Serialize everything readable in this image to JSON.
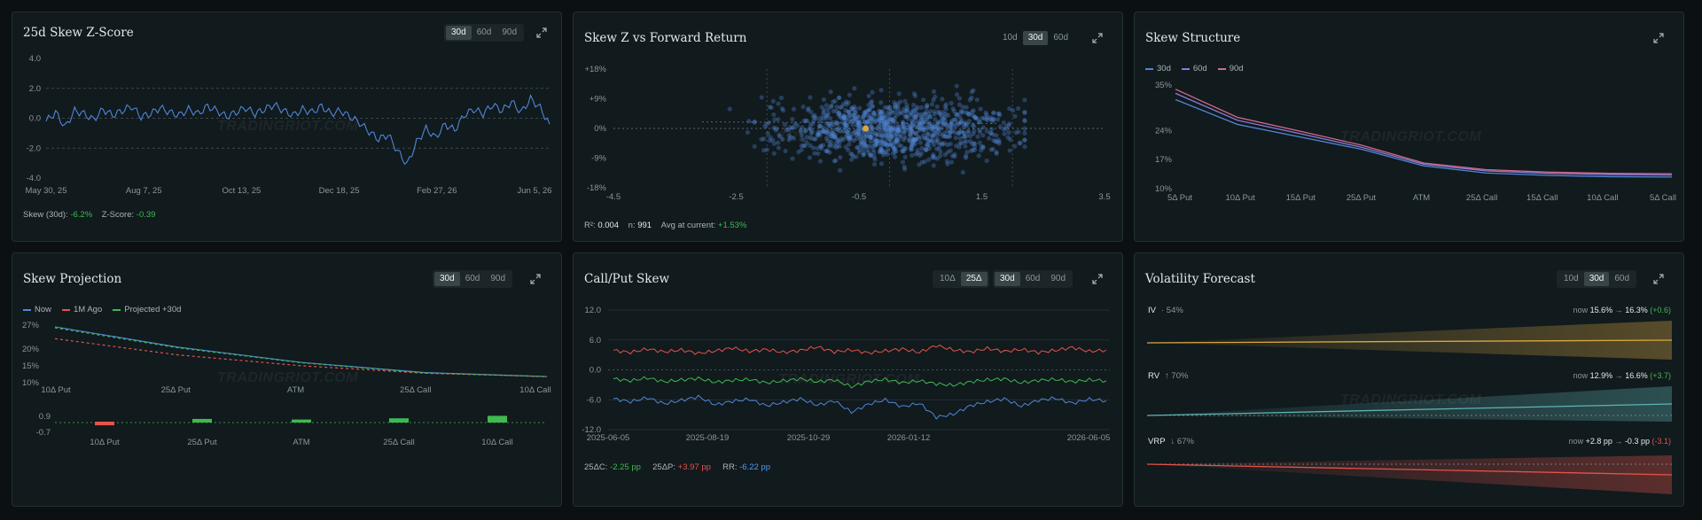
{
  "watermark": "TRADINGRIOT.COM",
  "colors": {
    "blue": "#4f86d6",
    "red": "#e5534b",
    "green": "#3fb950",
    "purple": "#8b7bd8",
    "pink": "#d46a8c",
    "gold": "#d9a741",
    "teal": "#5fb3b3"
  },
  "zscore": {
    "title": "25d Skew Z-Score",
    "tabs": [
      "30d",
      "60d",
      "90d"
    ],
    "active": "30d",
    "footer": {
      "skew_label": "Skew (30d):",
      "skew_value": "-6.2%",
      "z_label": "Z-Score:",
      "z_value": "-0.39"
    }
  },
  "scatter": {
    "title": "Skew Z vs Forward Return",
    "tabs": [
      "10d",
      "30d",
      "60d"
    ],
    "active": "30d",
    "footer": {
      "r2_label": "R²:",
      "r2_value": "0.004",
      "n_label": "n:",
      "n_value": "991",
      "avg_label": "Avg at current:",
      "avg_value": "+1.53%"
    }
  },
  "structure": {
    "title": "Skew Structure",
    "legend": [
      "30d",
      "60d",
      "90d"
    ]
  },
  "projection": {
    "title": "Skew Projection",
    "tabs": [
      "30d",
      "60d",
      "90d"
    ],
    "active": "30d",
    "legend": [
      "Now",
      "1M Ago",
      "Projected +30d"
    ]
  },
  "callput": {
    "title": "Call/Put Skew",
    "delta_tabs": [
      "10Δ",
      "25Δ"
    ],
    "delta_active": "25Δ",
    "tabs": [
      "30d",
      "60d",
      "90d"
    ],
    "active": "30d",
    "footer": {
      "c_label": "25ΔC:",
      "c_value": "-2.25 pp",
      "p_label": "25ΔP:",
      "p_value": "+3.97 pp",
      "rr_label": "RR:",
      "rr_value": "-6.22 pp"
    }
  },
  "volforecast": {
    "title": "Volatility Forecast",
    "tabs": [
      "10d",
      "30d",
      "60d"
    ],
    "active": "30d",
    "rows": {
      "iv": {
        "label": "IV",
        "sub": "· 54%",
        "now": "now",
        "from": "15.6%",
        "arrow": "→",
        "to": "16.3%",
        "delta": "(+0.6)"
      },
      "rv": {
        "label": "RV",
        "sub": "↑ 70%",
        "now": "now",
        "from": "12.9%",
        "arrow": "→",
        "to": "16.6%",
        "delta": "(+3.7)"
      },
      "vrp": {
        "label": "VRP",
        "sub": "↓ 67%",
        "now": "now",
        "from": "+2.8 pp",
        "arrow": "→",
        "to": "-0.3 pp",
        "delta": "(-3.1)"
      }
    }
  },
  "chart_data": [
    {
      "type": "line",
      "title": "25d Skew Z-Score",
      "x_ticks": [
        "May 30, 25",
        "Aug 7, 25",
        "Oct 13, 25",
        "Dec 18, 25",
        "Feb 27, 26",
        "Jun 5, 26"
      ],
      "y_ticks": [
        "4.0",
        "2.0",
        "0.0",
        "-2.0",
        "-4.0"
      ],
      "ylim": [
        -4,
        4
      ],
      "series": [
        {
          "values": [
            -0.2,
            0.4,
            -0.6,
            0.5,
            0.3,
            -0.1,
            0.6,
            0.2,
            0.5,
            0.8,
            0.1,
            0.3,
            0.7,
            0.4,
            0.2,
            0.6,
            0.3,
            0.8,
            0.5,
            0.1,
            0.4,
            0.7,
            0.3,
            0.6,
            0.9,
            0.5,
            0.2,
            0.6,
            0.4,
            0.8,
            0.3,
            0.5,
            0.1,
            -0.3,
            -0.9,
            -1.4,
            -1.1,
            -2.2,
            -3.1,
            -1.6,
            -0.7,
            -1.3,
            -0.4,
            -0.8,
            0.2,
            0.6,
            0.3,
            0.9,
            0.5,
            1.1,
            0.4,
            1.3,
            0.7,
            -0.4
          ]
        }
      ]
    },
    {
      "type": "scatter",
      "title": "Skew Z vs Forward Return",
      "x_ticks": [
        "-4.5",
        "-2.5",
        "-0.5",
        "1.5",
        "3.5"
      ],
      "y_ticks": [
        "+18%",
        "+9%",
        "0%",
        "-9%",
        "-18%"
      ],
      "xlim": [
        -4.5,
        3.5
      ],
      "ylim": [
        -18,
        18
      ],
      "n": 991,
      "current": {
        "x": -0.39,
        "y": 0
      }
    },
    {
      "type": "line",
      "title": "Skew Structure",
      "categories": [
        "5Δ Put",
        "10Δ Put",
        "15Δ Put",
        "25Δ Put",
        "ATM",
        "25Δ Call",
        "15Δ Call",
        "10Δ Call",
        "5Δ Call"
      ],
      "y_ticks": [
        "35%",
        "24%",
        "17%",
        "10%"
      ],
      "series": [
        {
          "name": "30d",
          "values": [
            31.5,
            25.5,
            22.5,
            19.5,
            15.5,
            13.8,
            13.2,
            12.9,
            12.8
          ]
        },
        {
          "name": "60d",
          "values": [
            33.0,
            26.5,
            23.3,
            20.0,
            15.9,
            14.3,
            13.7,
            13.4,
            13.3
          ]
        },
        {
          "name": "90d",
          "values": [
            34.0,
            27.2,
            23.9,
            20.5,
            16.2,
            14.6,
            14.0,
            13.7,
            13.6
          ]
        }
      ]
    },
    {
      "type": "line",
      "title": "Skew Projection",
      "categories": [
        "10Δ Put",
        "25Δ Put",
        "ATM",
        "25Δ Call",
        "10Δ Call"
      ],
      "y_ticks": [
        "27%",
        "20%",
        "15%",
        "10%"
      ],
      "series": [
        {
          "name": "Now",
          "values": [
            26.5,
            20.5,
            16.0,
            13.0,
            11.8
          ]
        },
        {
          "name": "1M Ago",
          "values": [
            23.0,
            18.2,
            15.0,
            12.8,
            11.8
          ]
        },
        {
          "name": "Projected +30d",
          "values": [
            26.2,
            20.3,
            15.9,
            12.9,
            11.8
          ]
        }
      ],
      "diff": {
        "y_ticks": [
          "0.9",
          "-0.7"
        ],
        "values": [
          -0.3,
          0.3,
          0.2,
          0.4,
          0.8
        ]
      }
    },
    {
      "type": "line",
      "title": "Call/Put Skew",
      "x_ticks": [
        "2025-06-05",
        "2025-08-19",
        "2025-10-29",
        "2026-01-12",
        "2026-06-05"
      ],
      "y_ticks": [
        "12.0",
        "6.0",
        "0.0",
        "-6.0",
        "-12.0"
      ],
      "ylim": [
        -12,
        12
      ],
      "series": [
        {
          "name": "25ΔP",
          "values": [
            3.9,
            3.5,
            4.2,
            3.6,
            4.0,
            3.3,
            3.8,
            4.4,
            3.7,
            4.1,
            3.5,
            3.9,
            4.6,
            3.6,
            4.0,
            3.4,
            3.8,
            4.2,
            3.5,
            4.9,
            4.0,
            3.6,
            4.3,
            3.7,
            4.1,
            3.5,
            3.9,
            4.5,
            3.7,
            4.0
          ]
        },
        {
          "name": "25ΔC",
          "values": [
            -1.8,
            -2.2,
            -1.6,
            -2.4,
            -2.0,
            -1.7,
            -2.5,
            -2.1,
            -1.9,
            -2.6,
            -2.2,
            -1.8,
            -2.4,
            -2.0,
            -3.4,
            -2.3,
            -1.9,
            -2.6,
            -2.2,
            -2.8,
            -3.1,
            -2.4,
            -2.0,
            -1.8,
            -2.6,
            -2.1,
            -1.9,
            -2.4,
            -2.0,
            -2.2
          ]
        },
        {
          "name": "RR",
          "values": [
            -5.8,
            -6.4,
            -5.6,
            -6.8,
            -6.1,
            -5.4,
            -7.0,
            -6.3,
            -5.9,
            -7.2,
            -6.5,
            -5.8,
            -7.1,
            -6.2,
            -8.5,
            -6.9,
            -6.0,
            -7.4,
            -6.7,
            -9.5,
            -8.9,
            -7.2,
            -6.4,
            -5.8,
            -7.3,
            -6.1,
            -5.7,
            -6.7,
            -5.9,
            -6.2
          ]
        }
      ]
    }
  ]
}
